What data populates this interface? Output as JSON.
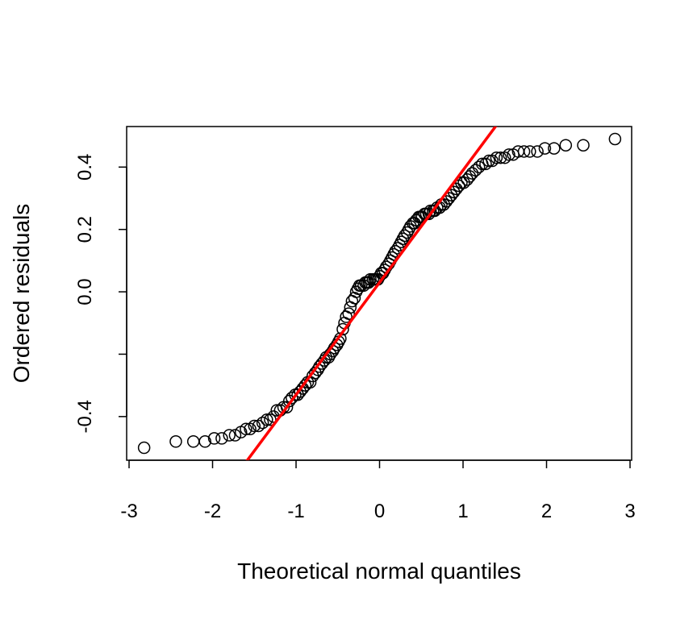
{
  "chart_data": {
    "type": "scatter",
    "title": "",
    "xlabel": "Theoretical normal quantiles",
    "ylabel": "Ordered residuals",
    "xlim": [
      -3.0,
      3.0
    ],
    "ylim": [
      -0.54,
      0.53
    ],
    "xticks": [
      -3,
      -2,
      -1,
      0,
      1,
      2,
      3
    ],
    "xtick_labels": [
      "-3",
      "-2",
      "-1",
      "0",
      "1",
      "2",
      "3"
    ],
    "yticks": [
      -0.4,
      -0.2,
      0.0,
      0.2,
      0.4
    ],
    "ytick_labels": [
      "-0.4",
      "",
      "0.0",
      "0.2",
      "0.4"
    ],
    "grid": false,
    "legend": "none",
    "point_style": "open-circle",
    "point_color": "#000000",
    "reference_line": {
      "color": "#ff0000",
      "intercept": 0.03,
      "slope": 0.36
    },
    "series": [
      {
        "x": [
          -2.82,
          -2.44,
          -2.23,
          -2.09,
          -1.98,
          -1.89,
          -1.8,
          -1.73,
          -1.66,
          -1.6,
          -1.55,
          -1.5,
          -1.45,
          -1.4,
          -1.35,
          -1.31,
          -1.27,
          -1.23,
          -1.19,
          -1.15,
          -1.11,
          -1.08,
          -1.05,
          -1.01,
          -0.98,
          -0.95,
          -0.92,
          -0.89,
          -0.86,
          -0.83,
          -0.8,
          -0.77,
          -0.74,
          -0.72,
          -0.69,
          -0.66,
          -0.64,
          -0.61,
          -0.59,
          -0.56,
          -0.54,
          -0.51,
          -0.49,
          -0.47,
          -0.44,
          -0.42,
          -0.4,
          -0.37,
          -0.35,
          -0.33,
          -0.3,
          -0.28,
          -0.26,
          -0.24,
          -0.22,
          -0.19,
          -0.17,
          -0.15,
          -0.13,
          -0.11,
          -0.08,
          -0.06,
          -0.04,
          -0.02,
          0.0,
          0.02,
          0.04,
          0.06,
          0.08,
          0.11,
          0.13,
          0.15,
          0.17,
          0.19,
          0.22,
          0.24,
          0.26,
          0.28,
          0.3,
          0.33,
          0.35,
          0.37,
          0.4,
          0.42,
          0.44,
          0.47,
          0.49,
          0.51,
          0.54,
          0.56,
          0.59,
          0.61,
          0.64,
          0.66,
          0.69,
          0.72,
          0.74,
          0.77,
          0.8,
          0.83,
          0.86,
          0.89,
          0.92,
          0.95,
          0.98,
          1.01,
          1.05,
          1.08,
          1.11,
          1.15,
          1.19,
          1.23,
          1.27,
          1.31,
          1.35,
          1.4,
          1.45,
          1.5,
          1.55,
          1.6,
          1.66,
          1.73,
          1.8,
          1.89,
          1.98,
          2.09,
          2.23,
          2.44,
          2.82
        ],
        "y": [
          -0.5,
          -0.48,
          -0.48,
          -0.48,
          -0.47,
          -0.47,
          -0.46,
          -0.46,
          -0.45,
          -0.44,
          -0.44,
          -0.43,
          -0.43,
          -0.42,
          -0.41,
          -0.41,
          -0.4,
          -0.38,
          -0.38,
          -0.37,
          -0.37,
          -0.35,
          -0.34,
          -0.33,
          -0.33,
          -0.32,
          -0.31,
          -0.3,
          -0.29,
          -0.29,
          -0.27,
          -0.26,
          -0.25,
          -0.24,
          -0.23,
          -0.22,
          -0.21,
          -0.21,
          -0.2,
          -0.19,
          -0.18,
          -0.17,
          -0.16,
          -0.15,
          -0.12,
          -0.1,
          -0.08,
          -0.07,
          -0.05,
          -0.03,
          -0.02,
          0.0,
          0.01,
          0.02,
          0.02,
          0.02,
          0.03,
          0.03,
          0.03,
          0.04,
          0.04,
          0.04,
          0.04,
          0.04,
          0.05,
          0.06,
          0.06,
          0.07,
          0.08,
          0.09,
          0.1,
          0.11,
          0.12,
          0.13,
          0.14,
          0.15,
          0.16,
          0.17,
          0.18,
          0.19,
          0.2,
          0.21,
          0.22,
          0.22,
          0.23,
          0.24,
          0.24,
          0.24,
          0.25,
          0.25,
          0.25,
          0.26,
          0.26,
          0.26,
          0.27,
          0.27,
          0.28,
          0.28,
          0.29,
          0.3,
          0.31,
          0.32,
          0.33,
          0.34,
          0.35,
          0.35,
          0.36,
          0.37,
          0.38,
          0.39,
          0.4,
          0.41,
          0.41,
          0.42,
          0.42,
          0.43,
          0.43,
          0.43,
          0.44,
          0.44,
          0.45,
          0.45,
          0.45,
          0.45,
          0.46,
          0.46,
          0.47,
          0.47,
          0.49
        ]
      }
    ]
  }
}
